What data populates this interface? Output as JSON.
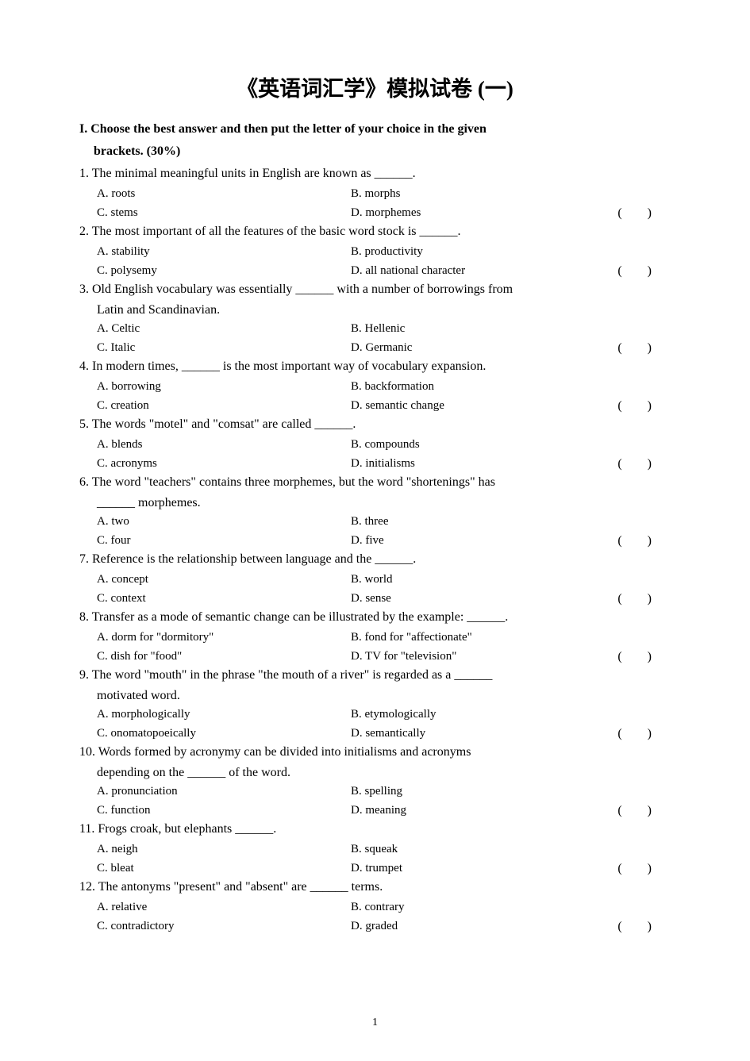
{
  "title": "《英语词汇学》模拟试卷 (一)",
  "section_header_line1": "I. Choose the best answer and then put the letter of your choice in the given",
  "section_header_line2": "brackets. (30%)",
  "bracket_text": "(  )",
  "questions": [
    {
      "num": "1.",
      "text": "The minimal meaningful units in English are known as ______.",
      "optA": "A. roots",
      "optB": "B.  morphs",
      "optC": "C. stems",
      "optD": "D.  morphemes"
    },
    {
      "num": "2.",
      "text": "The most important of all the features of the basic word stock is ______.",
      "optA": "A. stability",
      "optB": "B.  productivity",
      "optC": "C. polysemy",
      "optD": "D.  all national character"
    },
    {
      "num": "3.",
      "text": "Old English vocabulary was essentially ______ with a number of borrowings from",
      "cont": "Latin and Scandinavian.",
      "optA": "A. Celtic",
      "optB": "B.  Hellenic",
      "optC": "C. Italic",
      "optD": "D.  Germanic"
    },
    {
      "num": "4.",
      "text": "In modern times, ______ is the most important way of vocabulary expansion.",
      "optA": "A. borrowing",
      "optB": "B.  backformation",
      "optC": "C. creation",
      "optD": "D.  semantic change"
    },
    {
      "num": "5.",
      "text": "The words \"motel\" and \"comsat\" are called ______.",
      "optA": "A. blends",
      "optB": "B.  compounds",
      "optC": "C. acronyms",
      "optD": "D.  initialisms"
    },
    {
      "num": "6.",
      "text": "The word \"teachers\" contains three morphemes, but the word \"shortenings\" has",
      "cont": "______ morphemes.",
      "optA": "A. two",
      "optB": "B.  three",
      "optC": "C. four",
      "optD": "D.  five"
    },
    {
      "num": "7.",
      "text": "Reference is the relationship between language and the ______.",
      "optA": "A. concept",
      "optB": "B.  world",
      "optC": "C. context",
      "optD": "D.  sense"
    },
    {
      "num": "8.",
      "text": "Transfer as a mode of semantic change can be illustrated by the example: ______.",
      "optA": "A. dorm for \"dormitory\"",
      "optB": "B.  fond for \"affectionate\"",
      "optC": "C. dish for \"food\"",
      "optD": "D.  TV for \"television\""
    },
    {
      "num": "9.",
      "text": "The word \"mouth\" in the phrase \"the mouth of a river\" is regarded as a ______",
      "cont": "motivated word.",
      "optA": "A. morphologically",
      "optB": "B.  etymologically",
      "optC": "C. onomatopoeically",
      "optD": "D.  semantically"
    },
    {
      "num": "10.",
      "text": "Words formed by acronymy can be divided into initialisms and acronyms",
      "cont": "depending on the ______ of the word.",
      "optA": "A. pronunciation",
      "optB": "B.  spelling",
      "optC": "C. function",
      "optD": "D.  meaning"
    },
    {
      "num": "11.",
      "text": "Frogs croak, but elephants ______.",
      "optA": "A. neigh",
      "optB": "B.  squeak",
      "optC": "C. bleat",
      "optD": "D.  trumpet"
    },
    {
      "num": "12.",
      "text": "The antonyms \"present\" and \"absent\" are ______ terms.",
      "optA": "A. relative",
      "optB": "B.  contrary",
      "optC": "C. contradictory",
      "optD": "D.  graded"
    }
  ],
  "page_number": "1"
}
